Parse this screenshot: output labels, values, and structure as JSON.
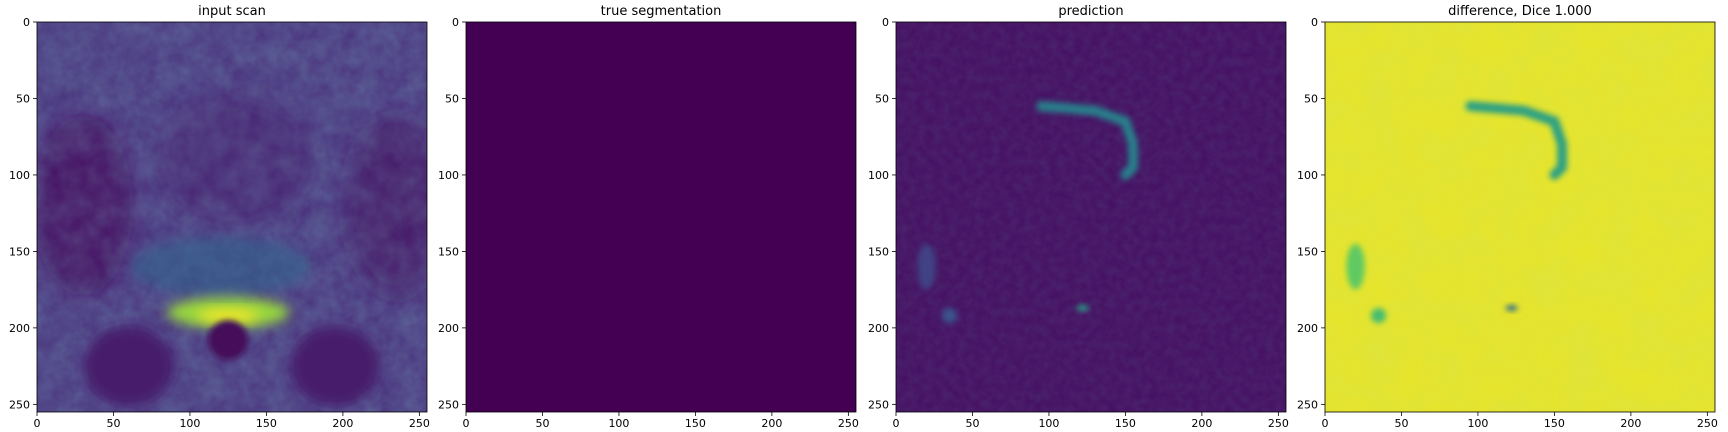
{
  "chart_data": [
    {
      "type": "heatmap",
      "title": "input scan",
      "colormap": "viridis",
      "xlim": [
        0,
        255
      ],
      "ylim": [
        255,
        0
      ],
      "xticks": [
        0,
        50,
        100,
        150,
        200,
        250
      ],
      "yticks": [
        0,
        50,
        100,
        150,
        200,
        250
      ],
      "xlabel": "",
      "ylabel": "",
      "content": "MRI slice, mostly dark blue/purple with bright yellow-green band near rows 170-195",
      "features": [
        {
          "kind": "blob",
          "cx": 125,
          "cy": 190,
          "rx": 40,
          "ry": 10,
          "intensity": 0.85
        },
        {
          "kind": "blob",
          "cx": 125,
          "cy": 192,
          "rx": 20,
          "ry": 4,
          "intensity": 1.0
        },
        {
          "kind": "dark_circle",
          "cx": 125,
          "cy": 208,
          "r": 13
        }
      ]
    },
    {
      "type": "heatmap",
      "title": "true segmentation",
      "colormap": "viridis",
      "xlim": [
        0,
        255
      ],
      "ylim": [
        255,
        0
      ],
      "xticks": [
        0,
        50,
        100,
        150,
        200,
        250
      ],
      "yticks": [
        0,
        50,
        100,
        150,
        200,
        250
      ],
      "xlabel": "",
      "ylabel": "",
      "content": "uniform zero",
      "features": []
    },
    {
      "type": "heatmap",
      "title": "prediction",
      "colormap": "viridis",
      "xlim": [
        0,
        255
      ],
      "ylim": [
        255,
        0
      ],
      "xticks": [
        0,
        50,
        100,
        150,
        200,
        250
      ],
      "yticks": [
        0,
        50,
        100,
        150,
        200,
        250
      ],
      "xlabel": "",
      "ylabel": "",
      "content": "mostly near-zero with faint green arc around rows 55-100, x 95-165",
      "features": [
        {
          "kind": "arc",
          "points": [
            [
              95,
              55
            ],
            [
              130,
              58
            ],
            [
              150,
              65
            ],
            [
              155,
              80
            ],
            [
              155,
              95
            ],
            [
              150,
              100
            ]
          ],
          "intensity": 0.45
        },
        {
          "kind": "blob",
          "cx": 20,
          "cy": 160,
          "rx": 6,
          "ry": 15,
          "intensity": 0.2
        },
        {
          "kind": "blob",
          "cx": 35,
          "cy": 192,
          "rx": 5,
          "ry": 5,
          "intensity": 0.25
        },
        {
          "kind": "blob",
          "cx": 122,
          "cy": 187,
          "rx": 4,
          "ry": 2,
          "intensity": 0.6
        }
      ]
    },
    {
      "type": "heatmap",
      "title": "difference, Dice 1.000",
      "colormap": "viridis",
      "xlim": [
        0,
        255
      ],
      "ylim": [
        255,
        0
      ],
      "xticks": [
        0,
        50,
        100,
        150,
        200,
        250
      ],
      "yticks": [
        0,
        50,
        100,
        150,
        200,
        250
      ],
      "xlabel": "",
      "ylabel": "",
      "content": "mostly yellow with green-teal arc (inverse of prediction)",
      "features": [
        {
          "kind": "arc",
          "points": [
            [
              95,
              55
            ],
            [
              130,
              58
            ],
            [
              150,
              65
            ],
            [
              155,
              80
            ],
            [
              155,
              95
            ],
            [
              150,
              100
            ]
          ],
          "intensity": 0.55
        },
        {
          "kind": "blob",
          "cx": 20,
          "cy": 160,
          "rx": 6,
          "ry": 15,
          "intensity": 0.75
        },
        {
          "kind": "blob",
          "cx": 35,
          "cy": 192,
          "rx": 5,
          "ry": 5,
          "intensity": 0.7
        },
        {
          "kind": "blob",
          "cx": 122,
          "cy": 187,
          "rx": 4,
          "ry": 2,
          "intensity": 0.35
        }
      ]
    }
  ]
}
